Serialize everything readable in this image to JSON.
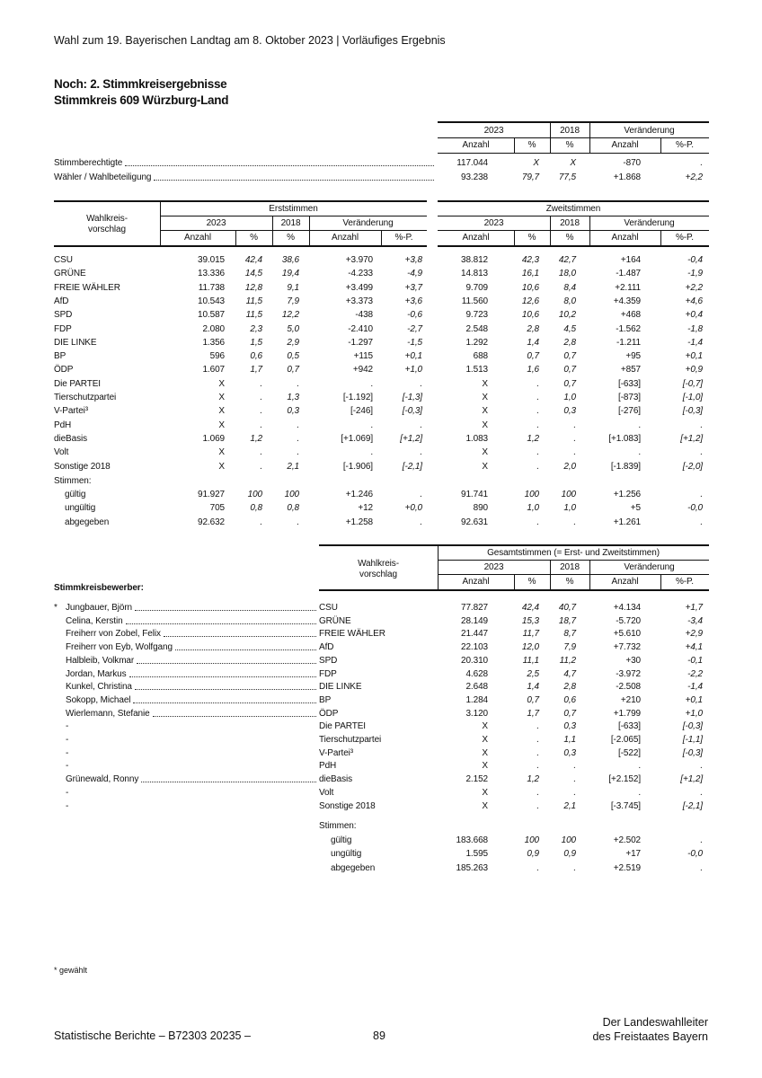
{
  "header": {
    "title": "Wahl zum 19. Bayerischen Landtag am 8. Oktober 2023 | Vorläufiges Ergebnis"
  },
  "section": {
    "line1": "Noch: 2. Stimmkreisergebnisse",
    "line2": "Stimmkreis 609 Würzburg-Land"
  },
  "col_headers": {
    "y2023": "2023",
    "y2018": "2018",
    "change": "Veränderung",
    "count": "Anzahl",
    "pct": "%",
    "pctp": "%-P.",
    "party": "Wahlkreis-vorschlag",
    "erst": "Erststimmen",
    "zweit": "Zweitstimmen",
    "gesamt": "Gesamtstimmen (= Erst- und Zweitstimmen)",
    "candidates": "Stimmkreisbewerber:"
  },
  "summary": [
    [
      "Stimmberechtigte",
      "117.044",
      "X",
      "X",
      "-870",
      "."
    ],
    [
      "Wähler / Wahlbeteiligung",
      "93.238",
      "79,7",
      "77,5",
      "+1.868",
      "+2,2"
    ]
  ],
  "parties": [
    [
      "CSU",
      "39.015",
      "42,4",
      "38,6",
      "+3.970",
      "+3,8",
      "38.812",
      "42,3",
      "42,7",
      "+164",
      "-0,4"
    ],
    [
      "GRÜNE",
      "13.336",
      "14,5",
      "19,4",
      "-4.233",
      "-4,9",
      "14.813",
      "16,1",
      "18,0",
      "-1.487",
      "-1,9"
    ],
    [
      "FREIE WÄHLER",
      "11.738",
      "12,8",
      "9,1",
      "+3.499",
      "+3,7",
      "9.709",
      "10,6",
      "8,4",
      "+2.111",
      "+2,2"
    ],
    [
      "AfD",
      "10.543",
      "11,5",
      "7,9",
      "+3.373",
      "+3,6",
      "11.560",
      "12,6",
      "8,0",
      "+4.359",
      "+4,6"
    ],
    [
      "SPD",
      "10.587",
      "11,5",
      "12,2",
      "-438",
      "-0,6",
      "9.723",
      "10,6",
      "10,2",
      "+468",
      "+0,4"
    ],
    [
      "FDP",
      "2.080",
      "2,3",
      "5,0",
      "-2.410",
      "-2,7",
      "2.548",
      "2,8",
      "4,5",
      "-1.562",
      "-1,8"
    ],
    [
      "DIE LINKE",
      "1.356",
      "1,5",
      "2,9",
      "-1.297",
      "-1,5",
      "1.292",
      "1,4",
      "2,8",
      "-1.211",
      "-1,4"
    ],
    [
      "BP",
      "596",
      "0,6",
      "0,5",
      "+115",
      "+0,1",
      "688",
      "0,7",
      "0,7",
      "+95",
      "+0,1"
    ],
    [
      "ÖDP",
      "1.607",
      "1,7",
      "0,7",
      "+942",
      "+1,0",
      "1.513",
      "1,6",
      "0,7",
      "+857",
      "+0,9"
    ],
    [
      "Die PARTEI",
      "X",
      ".",
      ".",
      ".",
      ".",
      "X",
      ".",
      "0,7",
      "[-633]",
      "[-0,7]"
    ],
    [
      "Tierschutzpartei",
      "X",
      ".",
      "1,3",
      "[-1.192]",
      "[-1,3]",
      "X",
      ".",
      "1,0",
      "[-873]",
      "[-1,0]"
    ],
    [
      "V-Partei³",
      "X",
      ".",
      "0,3",
      "[-246]",
      "[-0,3]",
      "X",
      ".",
      "0,3",
      "[-276]",
      "[-0,3]"
    ],
    [
      "PdH",
      "X",
      ".",
      ".",
      ".",
      ".",
      "X",
      ".",
      ".",
      ".",
      "."
    ],
    [
      "dieBasis",
      "1.069",
      "1,2",
      ".",
      "[+1.069]",
      "[+1,2]",
      "1.083",
      "1,2",
      ".",
      "[+1.083]",
      "[+1,2]"
    ],
    [
      "Volt",
      "X",
      ".",
      ".",
      ".",
      ".",
      "X",
      ".",
      ".",
      ".",
      "."
    ],
    [
      "Sonstige 2018",
      "X",
      ".",
      "2,1",
      "[-1.906]",
      "[-2,1]",
      "X",
      ".",
      "2,0",
      "[-1.839]",
      "[-2,0]"
    ]
  ],
  "votes_label": "Stimmen:",
  "votes": [
    [
      "gültig",
      "91.927",
      "100",
      "100",
      "+1.246",
      ".",
      "91.741",
      "100",
      "100",
      "+1.256",
      "."
    ],
    [
      "ungültig",
      "705",
      "0,8",
      "0,8",
      "+12",
      "+0,0",
      "890",
      "1,0",
      "1,0",
      "+5",
      "-0,0"
    ],
    [
      "abgegeben",
      "92.632",
      ".",
      ".",
      "+1.258",
      ".",
      "92.631",
      ".",
      ".",
      "+1.261",
      "."
    ]
  ],
  "candidates": [
    [
      "*",
      "Jungbauer, Björn",
      "CSU",
      "77.827",
      "42,4",
      "40,7",
      "+4.134",
      "+1,7"
    ],
    [
      "",
      "Celina, Kerstin",
      "GRÜNE",
      "28.149",
      "15,3",
      "18,7",
      "-5.720",
      "-3,4"
    ],
    [
      "",
      "Freiherr von Zobel, Felix",
      "FREIE WÄHLER",
      "21.447",
      "11,7",
      "8,7",
      "+5.610",
      "+2,9"
    ],
    [
      "",
      "Freiherr von Eyb, Wolfgang",
      "AfD",
      "22.103",
      "12,0",
      "7,9",
      "+7.732",
      "+4,1"
    ],
    [
      "",
      "Halbleib, Volkmar",
      "SPD",
      "20.310",
      "11,1",
      "11,2",
      "+30",
      "-0,1"
    ],
    [
      "",
      "Jordan, Markus",
      "FDP",
      "4.628",
      "2,5",
      "4,7",
      "-3.972",
      "-2,2"
    ],
    [
      "",
      "Kunkel, Christina",
      "DIE LINKE",
      "2.648",
      "1,4",
      "2,8",
      "-2.508",
      "-1,4"
    ],
    [
      "",
      "Sokopp, Michael",
      "BP",
      "1.284",
      "0,7",
      "0,6",
      "+210",
      "+0,1"
    ],
    [
      "",
      "Wierlemann, Stefanie",
      "ÖDP",
      "3.120",
      "1,7",
      "0,7",
      "+1.799",
      "+1,0"
    ],
    [
      "",
      "-",
      "Die PARTEI",
      "X",
      ".",
      "0,3",
      "[-633]",
      "[-0,3]"
    ],
    [
      "",
      "-",
      "Tierschutzpartei",
      "X",
      ".",
      "1,1",
      "[-2.065]",
      "[-1,1]"
    ],
    [
      "",
      "-",
      "V-Partei³",
      "X",
      ".",
      "0,3",
      "[-522]",
      "[-0,3]"
    ],
    [
      "",
      "-",
      "PdH",
      "X",
      ".",
      ".",
      ".",
      "."
    ],
    [
      "",
      "Grünewald, Ronny",
      "dieBasis",
      "2.152",
      "1,2",
      ".",
      "[+2.152]",
      "[+1,2]"
    ],
    [
      "",
      "-",
      "Volt",
      "X",
      ".",
      ".",
      ".",
      "."
    ],
    [
      "",
      "-",
      "Sonstige 2018",
      "X",
      ".",
      "2,1",
      "[-3.745]",
      "[-2,1]"
    ]
  ],
  "total_votes": [
    [
      "gültig",
      "183.668",
      "100",
      "100",
      "+2.502",
      "."
    ],
    [
      "ungültig",
      "1.595",
      "0,9",
      "0,9",
      "+17",
      "-0,0"
    ],
    [
      "abgegeben",
      "185.263",
      ".",
      ".",
      "+2.519",
      "."
    ]
  ],
  "footnote": "* gewählt",
  "footer": {
    "left": "Statistische Berichte – B72303 20235 –",
    "page": "89",
    "right1": "Der Landeswahlleiter",
    "right2": "des Freistaates Bayern"
  }
}
